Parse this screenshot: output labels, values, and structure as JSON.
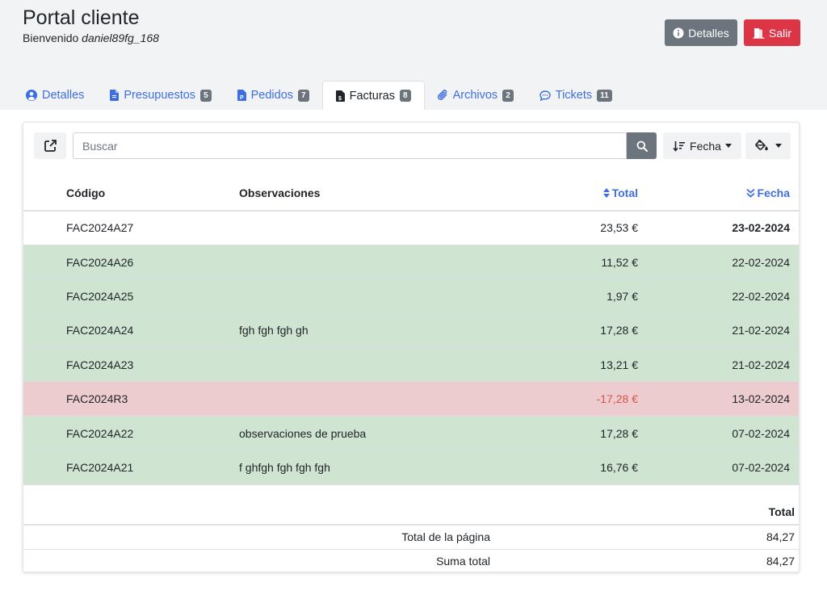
{
  "header": {
    "title": "Portal cliente",
    "welcome_prefix": "Bienvenido",
    "username": "daniel89fg_168",
    "detalles_button": "Detalles",
    "salir_button": "Salir"
  },
  "tabs": [
    {
      "label": "Detalles",
      "badge": null,
      "icon": "user-circle-icon"
    },
    {
      "label": "Presupuestos",
      "badge": "5",
      "icon": "file-icon"
    },
    {
      "label": "Pedidos",
      "badge": "7",
      "icon": "file-p-icon"
    },
    {
      "label": "Facturas",
      "badge": "8",
      "icon": "invoice-icon",
      "active": true
    },
    {
      "label": "Archivos",
      "badge": "2",
      "icon": "paperclip-icon"
    },
    {
      "label": "Tickets",
      "badge": "11",
      "icon": "chat-icon"
    }
  ],
  "toolbar": {
    "search_placeholder": "Buscar",
    "sort_label": "Fecha"
  },
  "table": {
    "columns": [
      "Código",
      "Observaciones",
      "Total",
      "Fecha"
    ],
    "rows": [
      {
        "code": "FAC2024A27",
        "obs": "",
        "total": "23,53 €",
        "date": "23-02-2024",
        "status": "none"
      },
      {
        "code": "FAC2024A26",
        "obs": "",
        "total": "11,52 €",
        "date": "22-02-2024",
        "status": "paid"
      },
      {
        "code": "FAC2024A25",
        "obs": "",
        "total": "1,97 €",
        "date": "22-02-2024",
        "status": "paid"
      },
      {
        "code": "FAC2024A24",
        "obs": "fgh fgh fgh gh",
        "total": "17,28 €",
        "date": "21-02-2024",
        "status": "paid"
      },
      {
        "code": "FAC2024A23",
        "obs": "",
        "total": "13,21 €",
        "date": "21-02-2024",
        "status": "paid"
      },
      {
        "code": "FAC2024R3",
        "obs": "",
        "total": "-17,28 €",
        "date": "13-02-2024",
        "status": "refund"
      },
      {
        "code": "FAC2024A22",
        "obs": "observaciones de prueba",
        "total": "17,28 €",
        "date": "07-02-2024",
        "status": "paid"
      },
      {
        "code": "FAC2024A21",
        "obs": "f ghfgh fgh fgh fgh",
        "total": "16,76 €",
        "date": "07-02-2024",
        "status": "paid"
      }
    ]
  },
  "totals": {
    "header": "Total",
    "page_label": "Total de la página",
    "page_value": "84,27",
    "sum_label": "Suma total",
    "sum_value": "84,27"
  },
  "colors": {
    "paid_row": "#cfe5d1",
    "refund_row": "#ecccce",
    "link": "#3d6fe0",
    "danger": "#dc3545",
    "secondary": "#6c757d"
  }
}
